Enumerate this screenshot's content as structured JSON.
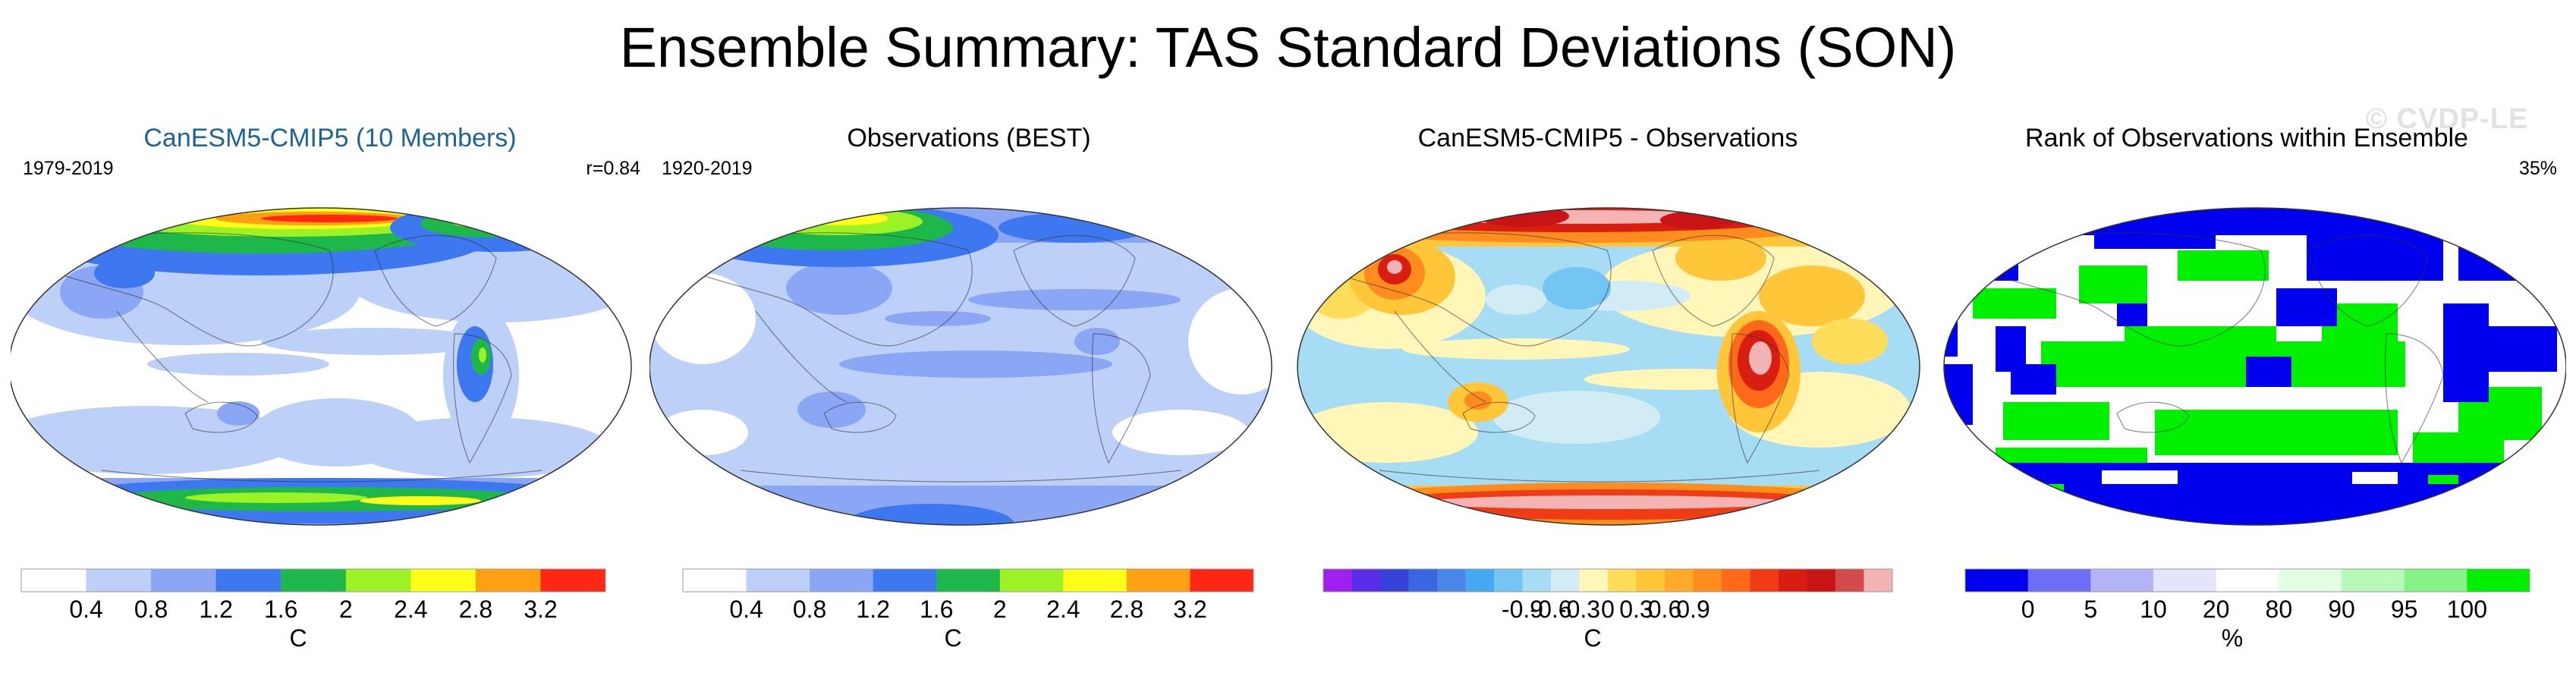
{
  "title": "Ensemble Summary: TAS Standard Deviations (SON)",
  "watermark": "© CVDP-LE",
  "panels": [
    {
      "title": "CanESM5-CMIP5 (10 Members)",
      "left_label": "1979-2019",
      "right_label": "r=0.84",
      "colorbar": {
        "unit": "C",
        "colors": [
          "#ffffff",
          "#bcd0f8",
          "#8aa6f4",
          "#3d78f0",
          "#1eb84a",
          "#9cf224",
          "#ffff19",
          "#ffa014",
          "#ff2814"
        ],
        "ticks": [
          "0.4",
          "0.8",
          "1.2",
          "1.6",
          "2",
          "2.4",
          "2.8",
          "3.2"
        ]
      }
    },
    {
      "title": "Observations (BEST)",
      "left_label": "1920-2019",
      "right_label": "",
      "colorbar": {
        "unit": "C",
        "colors": [
          "#ffffff",
          "#bcd0f8",
          "#8aa6f4",
          "#3d78f0",
          "#1eb84a",
          "#9cf224",
          "#ffff19",
          "#ffa014",
          "#ff2814"
        ],
        "ticks": [
          "0.4",
          "0.8",
          "1.2",
          "1.6",
          "2",
          "2.4",
          "2.8",
          "3.2"
        ]
      }
    },
    {
      "title": "CanESM5-CMIP5 - Observations",
      "left_label": "",
      "right_label": "",
      "colorbar": {
        "unit": "C",
        "colors": [
          "#a020f0",
          "#5a2ee8",
          "#3642d8",
          "#3a66e0",
          "#4a86e8",
          "#44a8f2",
          "#74c4f4",
          "#a6dcf4",
          "#d2ecf6",
          "#fff6b8",
          "#ffdc5a",
          "#ffc63a",
          "#ffaa28",
          "#ff8c1e",
          "#ff6a1a",
          "#f03c14",
          "#d81e10",
          "#c81414",
          "#d24a4a",
          "#f4b4b4"
        ],
        "ticks": [
          "-0.9",
          "-0.6",
          "-0.3",
          "0",
          "0.3",
          "0.6",
          "0.9"
        ]
      }
    },
    {
      "title": "Rank of Observations within Ensemble",
      "left_label": "",
      "right_label": "35%",
      "colorbar": {
        "unit": "%",
        "colors": [
          "#0000ee",
          "#6e6ef4",
          "#b4b4f6",
          "#e4e4fa",
          "#ffffff",
          "#e2fde2",
          "#b8f8b8",
          "#86f486",
          "#00f000"
        ],
        "ticks": [
          "0",
          "5",
          "10",
          "20",
          "80",
          "90",
          "95",
          "100"
        ]
      }
    }
  ]
}
